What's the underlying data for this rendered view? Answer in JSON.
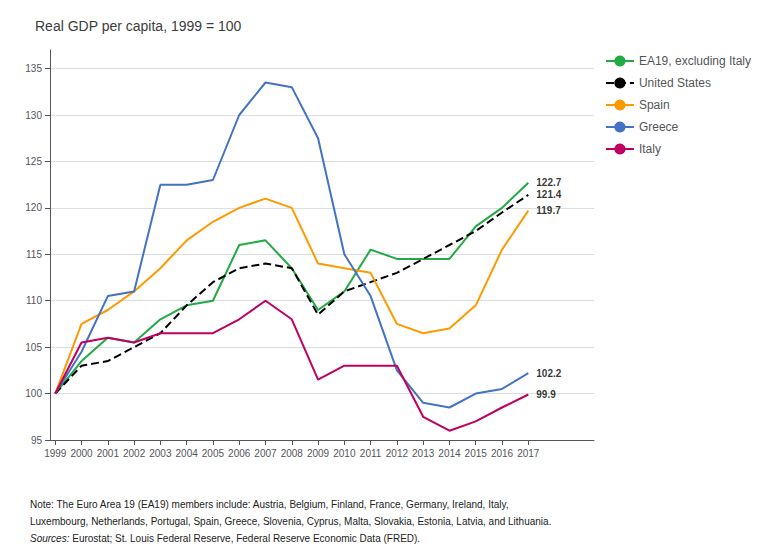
{
  "chart_data": {
    "type": "line",
    "title": "Real GDP per capita, 1999 = 100",
    "x": [
      1999,
      2000,
      2001,
      2002,
      2003,
      2004,
      2005,
      2006,
      2007,
      2008,
      2009,
      2010,
      2011,
      2012,
      2013,
      2014,
      2015,
      2016,
      2017
    ],
    "series": [
      {
        "name": "EA19, excluding Italy",
        "color": "#22aa44",
        "line_style": "solid",
        "values": [
          100,
          103.5,
          106.0,
          105.5,
          108.0,
          109.5,
          110.0,
          116.0,
          116.5,
          113.5,
          109.0,
          111.0,
          115.5,
          114.5,
          114.5,
          114.5,
          118.0,
          120.0,
          122.7
        ]
      },
      {
        "name": "United States",
        "color": "#000000",
        "line_style": "dashed",
        "values": [
          100,
          103.0,
          103.5,
          105.0,
          106.5,
          109.5,
          112.0,
          113.5,
          114.0,
          113.5,
          108.5,
          111.0,
          112.0,
          113.0,
          114.5,
          116.0,
          117.5,
          119.5,
          121.4
        ]
      },
      {
        "name": "Spain",
        "color": "#ff9900",
        "line_style": "solid",
        "values": [
          100,
          107.5,
          109.0,
          111.0,
          113.5,
          116.5,
          118.5,
          120.0,
          121.0,
          120.0,
          114.0,
          113.5,
          113.0,
          107.5,
          106.5,
          107.0,
          109.5,
          115.5,
          119.7
        ]
      },
      {
        "name": "Greece",
        "color": "#4472c4",
        "line_style": "solid",
        "values": [
          100,
          104.5,
          110.5,
          111.0,
          122.5,
          122.5,
          123.0,
          130.0,
          133.5,
          133.0,
          127.5,
          115.0,
          110.5,
          102.5,
          99.0,
          98.5,
          100.0,
          100.5,
          102.2
        ]
      },
      {
        "name": "Italy",
        "color": "#c00060",
        "line_style": "solid",
        "values": [
          100,
          105.5,
          106.0,
          105.5,
          106.5,
          106.5,
          106.5,
          108.0,
          110.0,
          108.0,
          101.5,
          103.0,
          103.0,
          103.0,
          97.5,
          96.0,
          97.0,
          98.5,
          99.9
        ]
      }
    ],
    "xlim": [
      1998.8,
      2019.5
    ],
    "xticks": [
      1999,
      2000,
      2001,
      2002,
      2003,
      2004,
      2005,
      2006,
      2007,
      2008,
      2009,
      2010,
      2011,
      2012,
      2013,
      2014,
      2015,
      2016,
      2017
    ],
    "ylim": [
      95,
      137
    ],
    "yticks": [
      95,
      100,
      105,
      110,
      115,
      120,
      125,
      130,
      135
    ],
    "grid": true,
    "legend": "upper right",
    "annotations": [
      {
        "text": "122.7",
        "x": 2017,
        "y": 122.7
      },
      {
        "text": "121.4",
        "x": 2017,
        "y": 121.4
      },
      {
        "text": "119.7",
        "x": 2017,
        "y": 119.7
      },
      {
        "text": "102.2",
        "x": 2017,
        "y": 102.2
      },
      {
        "text": "99.9",
        "x": 2017,
        "y": 99.9
      }
    ],
    "notes": [
      "Note: The Euro Area 19 (EA19) members include: Austria, Belgium, Finland, France, Germany, Ireland, Italy,",
      "Luxembourg, Netherlands, Portugal, Spain, Greece, Slovenia, Cyprus, Malta, Slovakia, Estonia, Latvia, and Lithuania."
    ],
    "sources": {
      "italic": "Sources:",
      "text": " Eurostat; St. Louis Federal Reserve, Federal Reserve Economic Data (FRED)."
    }
  }
}
